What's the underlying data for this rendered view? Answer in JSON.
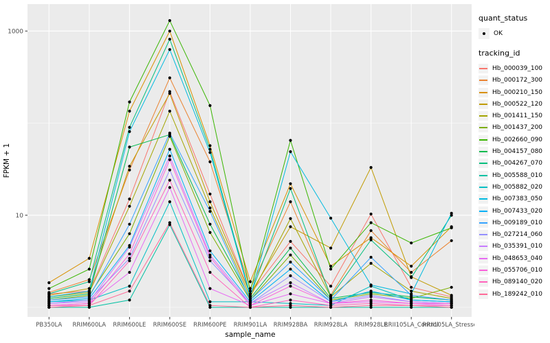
{
  "figure": {
    "panel_bg": "#EBEBEB",
    "grid_color": "#FFFFFF",
    "point_color": "#000000",
    "axis_text_color": "#4D4D4D",
    "legend_key_bg": "#F2F2F2"
  },
  "chart_data": {
    "type": "line",
    "title": "",
    "xlabel": "sample_name",
    "ylabel": "FPKM + 1",
    "y_scale": "log10",
    "y_major_breaks": [
      10,
      1000
    ],
    "y_minor_breaks": [
      1,
      100
    ],
    "y_tick_labels": [
      "10",
      "1000"
    ],
    "grid": true,
    "legend_position": "right",
    "legend": {
      "quant_status_title": "quant_status",
      "quant_status_items": [
        "OK"
      ],
      "tracking_id_title": "tracking_id"
    },
    "categories": [
      "PB350LA",
      "RRIM600LA",
      "RRIM600LE",
      "RRIM600SE",
      "RRIM600PE",
      "RRIM901LA",
      "RRIM928BA",
      "RRIM928LA",
      "RRIM928LE",
      "RRII105LA_Control",
      "RRII105LA_Stressed"
    ],
    "series": [
      {
        "name": "Hb_000039_100",
        "color": "#F8766D",
        "values": [
          1.4,
          1.5,
          15,
          220,
          17,
          1.4,
          5.2,
          1.7,
          10.3,
          1.65,
          1.3
        ]
      },
      {
        "name": "Hb_000172_300",
        "color": "#EA8331",
        "values": [
          1.45,
          2.0,
          31,
          310,
          38,
          1.6,
          14,
          1.35,
          6.8,
          2.4,
          5.3
        ]
      },
      {
        "name": "Hb_000210_150",
        "color": "#D89000",
        "values": [
          1.85,
          3.4,
          135,
          1000,
          57,
          1.9,
          22,
          2.8,
          5.7,
          2.8,
          7.5
        ]
      },
      {
        "name": "Hb_000522_120",
        "color": "#C09B00",
        "values": [
          1.35,
          1.6,
          34,
          210,
          14,
          1.4,
          7.5,
          4.4,
          33,
          2.15,
          1.35
        ]
      },
      {
        "name": "Hb_001411_150",
        "color": "#A3A500",
        "values": [
          1.3,
          1.45,
          12.5,
          135,
          12,
          1.3,
          9.2,
          1.3,
          3.0,
          1.5,
          1.25
        ]
      },
      {
        "name": "Hb_001437_200",
        "color": "#7CAE00",
        "values": [
          1.2,
          1.35,
          6.3,
          72,
          6.5,
          1.2,
          3.7,
          1.2,
          1.4,
          1.25,
          1.65
        ]
      },
      {
        "name": "Hb_002660_090",
        "color": "#39B600",
        "values": [
          1.6,
          2.6,
          170,
          1300,
          155,
          1.5,
          65,
          2.6,
          8.3,
          5.0,
          7.3
        ]
      },
      {
        "name": "Hb_004157_080",
        "color": "#00BB4E",
        "values": [
          1.25,
          1.4,
          55,
          75,
          8,
          1.25,
          4.4,
          1.25,
          1.45,
          1.3,
          1.2
        ]
      },
      {
        "name": "Hb_004267_070",
        "color": "#00BF7D",
        "values": [
          1.4,
          1.9,
          90,
          815,
          52,
          1.35,
          19.5,
          1.3,
          5.4,
          2.1,
          10.0
        ]
      },
      {
        "name": "Hb_005588_010",
        "color": "#00C1A3",
        "values": [
          1.0,
          1.0,
          1.2,
          7.9,
          1.0,
          1.0,
          1.0,
          1.0,
          1.0,
          1.0,
          1.0
        ]
      },
      {
        "name": "Hb_005882_020",
        "color": "#00BFC4",
        "values": [
          1.15,
          1.2,
          1.7,
          14,
          1.15,
          1.15,
          1.1,
          1.05,
          1.7,
          1.2,
          1.15
        ]
      },
      {
        "name": "Hb_007383_050",
        "color": "#00BAE0",
        "values": [
          1.3,
          1.5,
          81,
          630,
          48,
          1.3,
          49,
          9.3,
          1.75,
          1.4,
          10.5
        ]
      },
      {
        "name": "Hb_007433_020",
        "color": "#00B0F6",
        "values": [
          1.15,
          1.25,
          4.7,
          52,
          4.1,
          1.15,
          2.6,
          1.15,
          1.5,
          1.2,
          1.15
        ]
      },
      {
        "name": "Hb_009189_010",
        "color": "#35A2FF",
        "values": [
          1.2,
          1.3,
          8,
          78,
          11,
          1.2,
          3.1,
          1.2,
          3.5,
          1.35,
          1.2
        ]
      },
      {
        "name": "Hb_027214_060",
        "color": "#9590FF",
        "values": [
          1.1,
          1.2,
          3.4,
          31,
          3.2,
          1.1,
          2.2,
          1.15,
          1.35,
          1.15,
          1.1
        ]
      },
      {
        "name": "Hb_035391_010",
        "color": "#C77CFF",
        "values": [
          1.1,
          1.15,
          4.5,
          44,
          3.7,
          1.1,
          1.85,
          1.1,
          1.3,
          1.15,
          1.1
        ]
      },
      {
        "name": "Hb_048653_040",
        "color": "#E76BF3",
        "values": [
          1.05,
          1.1,
          2.4,
          20,
          1.6,
          1.05,
          1.4,
          1.1,
          1.15,
          1.1,
          1.05
        ]
      },
      {
        "name": "Hb_055706_010",
        "color": "#FA62DB",
        "values": [
          1.05,
          1.1,
          3.8,
          40,
          3.5,
          1.05,
          1.7,
          1.1,
          1.2,
          1.1,
          1.1
        ]
      },
      {
        "name": "Hb_089140_020",
        "color": "#FF62BC",
        "values": [
          1.05,
          1.05,
          3.2,
          24,
          2.4,
          1.0,
          1.2,
          1.05,
          1.1,
          1.05,
          1.05
        ]
      },
      {
        "name": "Hb_189242_010",
        "color": "#FF6A98",
        "values": [
          1.0,
          1.05,
          1.5,
          8.3,
          1.05,
          1.0,
          1.05,
          1.0,
          1.05,
          1.05,
          1.0
        ]
      }
    ]
  }
}
